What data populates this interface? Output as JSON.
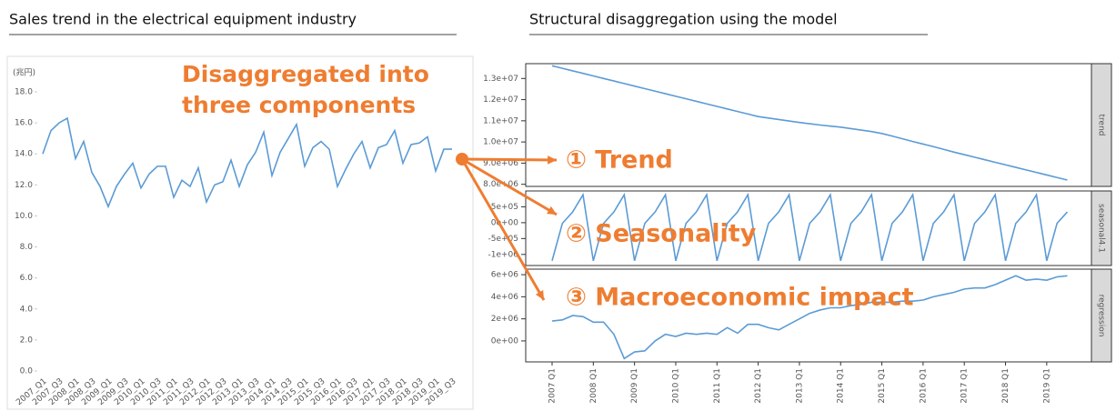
{
  "chart_data": [
    {
      "type": "line",
      "title": "Sales trend in the electrical equipment industry",
      "ylabel": "(兆円)",
      "categories": [
        "2007_Q1",
        null,
        "2007_Q3",
        null,
        "2008_Q1",
        null,
        "2008_Q3",
        null,
        "2009_Q1",
        null,
        "2009_Q3",
        null,
        "2010_Q1",
        null,
        "2010_Q3",
        null,
        "2011_Q1",
        null,
        "2011_Q3",
        null,
        "2012_Q1",
        null,
        "2012_Q3",
        null,
        "2013_Q1",
        null,
        "2013_Q3",
        null,
        "2014_Q1",
        null,
        "2014_Q3",
        null,
        "2015_Q1",
        null,
        "2015_Q3",
        null,
        "2016_Q1",
        null,
        "2016_Q3",
        null,
        "2017_Q1",
        null,
        "2017_Q3",
        null,
        "2018_Q1",
        null,
        "2018_Q3",
        null,
        "2019_Q1",
        null,
        "2019_Q3"
      ],
      "values": [
        14.0,
        15.5,
        16.0,
        16.3,
        13.7,
        14.8,
        12.8,
        11.9,
        10.6,
        11.9,
        12.7,
        13.4,
        11.8,
        12.7,
        13.2,
        13.2,
        11.2,
        12.3,
        11.9,
        13.1,
        10.9,
        12.0,
        12.2,
        13.6,
        11.9,
        13.3,
        14.1,
        15.4,
        12.6,
        14.1,
        15.0,
        15.9,
        13.2,
        14.4,
        14.8,
        14.3,
        11.9,
        13.0,
        14.0,
        14.8,
        13.1,
        14.4,
        14.6,
        15.5,
        13.4,
        14.6,
        14.7,
        15.1,
        12.9,
        14.3,
        14.3
      ],
      "color": "#5b9bd5",
      "ylim": [
        0,
        18
      ],
      "yticks": [
        {
          "value": 0,
          "label": "0.0"
        },
        {
          "value": 2,
          "label": "2.0"
        },
        {
          "value": 4,
          "label": "4.0"
        },
        {
          "value": 6,
          "label": "6.0"
        },
        {
          "value": 8,
          "label": "8.0"
        },
        {
          "value": 10,
          "label": "10.0"
        },
        {
          "value": 12,
          "label": "12.0"
        },
        {
          "value": 14,
          "label": "14.0"
        },
        {
          "value": 16,
          "label": "16.0"
        },
        {
          "value": 18,
          "label": "18.0"
        }
      ]
    },
    {
      "type": "facet-line",
      "title": "Structural disaggregation using the model",
      "color": "#5b9bd5",
      "categories": [
        "2007 Q1",
        null,
        null,
        null,
        "2008 Q1",
        null,
        null,
        null,
        "2009 Q1",
        null,
        null,
        null,
        "2010 Q1",
        null,
        null,
        null,
        "2011 Q1",
        null,
        null,
        null,
        "2012 Q1",
        null,
        null,
        null,
        "2013 Q1",
        null,
        null,
        null,
        "2014 Q1",
        null,
        null,
        null,
        "2015 Q1",
        null,
        null,
        null,
        "2016 Q1",
        null,
        null,
        null,
        "2017 Q1",
        null,
        null,
        null,
        "2018 Q1",
        null,
        null,
        null,
        "2019 Q1",
        null,
        null
      ],
      "panels": [
        {
          "strip": "trend",
          "ylim": [
            7900000,
            13700000
          ],
          "yticks": [
            {
              "value": 8000000,
              "label": "8.0e+06"
            },
            {
              "value": 9000000,
              "label": "9.0e+06"
            },
            {
              "value": 10000000,
              "label": "1.0e+07"
            },
            {
              "value": 11000000,
              "label": "1.1e+07"
            },
            {
              "value": 12000000,
              "label": "1.2e+07"
            },
            {
              "value": 13000000,
              "label": "1.3e+07"
            }
          ],
          "values": [
            13600000,
            13480000,
            13360000,
            13240000,
            13120000,
            13000000,
            12880000,
            12760000,
            12640000,
            12520000,
            12400000,
            12280000,
            12160000,
            12040000,
            11920000,
            11800000,
            11680000,
            11560000,
            11440000,
            11320000,
            11200000,
            11130000,
            11060000,
            10990000,
            10920000,
            10860000,
            10800000,
            10750000,
            10700000,
            10630000,
            10560000,
            10490000,
            10400000,
            10280000,
            10150000,
            10020000,
            9900000,
            9780000,
            9650000,
            9520000,
            9400000,
            9280000,
            9160000,
            9040000,
            8920000,
            8800000,
            8680000,
            8560000,
            8440000,
            8320000,
            8200000
          ]
        },
        {
          "strip": "seasonal4.1",
          "ylim": [
            -1350000,
            1000000
          ],
          "yticks": [
            {
              "value": -1000000,
              "label": "-1e+06"
            },
            {
              "value": -500000,
              "label": "-5e+05"
            },
            {
              "value": 0,
              "label": "0e+00"
            },
            {
              "value": 500000,
              "label": "5e+05"
            }
          ],
          "values": [
            -1200000,
            -20000,
            340000,
            880000,
            -1200000,
            -20000,
            340000,
            880000,
            -1200000,
            -20000,
            340000,
            880000,
            -1200000,
            -20000,
            340000,
            880000,
            -1200000,
            -20000,
            340000,
            880000,
            -1200000,
            -20000,
            340000,
            880000,
            -1200000,
            -20000,
            340000,
            880000,
            -1200000,
            -20000,
            340000,
            880000,
            -1200000,
            -20000,
            340000,
            880000,
            -1200000,
            -20000,
            340000,
            880000,
            -1200000,
            -20000,
            340000,
            880000,
            -1200000,
            -20000,
            340000,
            880000,
            -1200000,
            -20000,
            340000
          ]
        },
        {
          "strip": "regression",
          "ylim": [
            -1900000,
            6500000
          ],
          "yticks": [
            {
              "value": 0,
              "label": "0e+00"
            },
            {
              "value": 2000000,
              "label": "2e+06"
            },
            {
              "value": 4000000,
              "label": "4e+06"
            },
            {
              "value": 6000000,
              "label": "6e+06"
            }
          ],
          "values": [
            1800000,
            1900000,
            2300000,
            2200000,
            1700000,
            1700000,
            600000,
            -1600000,
            -1000000,
            -900000,
            0,
            600000,
            400000,
            700000,
            600000,
            700000,
            600000,
            1200000,
            700000,
            1500000,
            1500000,
            1200000,
            1000000,
            1500000,
            2000000,
            2500000,
            2800000,
            3000000,
            3000000,
            3200000,
            3300000,
            3500000,
            3500000,
            3500000,
            3600000,
            3600000,
            3700000,
            4000000,
            4200000,
            4400000,
            4700000,
            4800000,
            4800000,
            5100000,
            5500000,
            5900000,
            5500000,
            5600000,
            5500000,
            5800000,
            5900000
          ]
        }
      ]
    }
  ],
  "annotations": {
    "color": "#ee7d31",
    "callout": [
      "Disaggregated into",
      "three components"
    ],
    "labels": [
      "① Trend",
      "② Seasonality",
      "③ Macroeconomic impact"
    ]
  }
}
